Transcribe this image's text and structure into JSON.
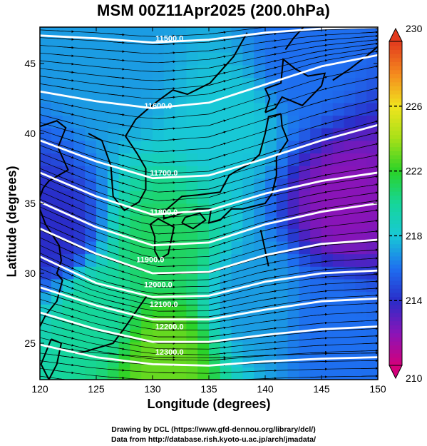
{
  "title": "MSM 00Z11Apr2025 (200.0hPa)",
  "credits": {
    "line1": "Drawing by DCL (https://www.gfd-dennou.org/library/dcl/)",
    "line2": "Data from http://database.rish.kyoto-u.ac.jp/arch/jmadata/"
  },
  "chart_data": {
    "type": "heatmap",
    "title": "MSM 00Z11Apr2025 (200.0hPa)",
    "xlabel": "Longitude (degrees)",
    "ylabel": "Latitude  (degrees)",
    "xlim": [
      120,
      150
    ],
    "ylim": [
      22.4,
      47.6
    ],
    "x_ticks": [
      120,
      125,
      130,
      135,
      140,
      145,
      150
    ],
    "y_ticks": [
      25,
      30,
      35,
      40,
      45
    ],
    "colorbar": {
      "min": 210,
      "max": 230,
      "ticks": [
        210,
        214,
        218,
        222,
        226,
        230
      ],
      "stops": [
        {
          "value": 210,
          "color": "#d4007a"
        },
        {
          "value": 212,
          "color": "#8a14b8"
        },
        {
          "value": 214,
          "color": "#2a2cc8"
        },
        {
          "value": 216,
          "color": "#1e6ff0"
        },
        {
          "value": 218,
          "color": "#18c8d6"
        },
        {
          "value": 220,
          "color": "#16d69a"
        },
        {
          "value": 222,
          "color": "#2ad228"
        },
        {
          "value": 224,
          "color": "#a6e018"
        },
        {
          "value": 226,
          "color": "#f0e41e"
        },
        {
          "value": 228,
          "color": "#f58a1e"
        },
        {
          "value": 230,
          "color": "#e23a1e"
        }
      ]
    },
    "temperature_regions": [
      {
        "lon": 127,
        "lat": 45,
        "value": 217
      },
      {
        "lon": 143,
        "lat": 45,
        "value": 216
      },
      {
        "lon": 137,
        "lat": 41,
        "value": 218
      },
      {
        "lon": 147,
        "lat": 35,
        "value": 212
      },
      {
        "lon": 121,
        "lat": 33,
        "value": 214
      },
      {
        "lon": 131,
        "lat": 32,
        "value": 221
      },
      {
        "lon": 125,
        "lat": 27,
        "value": 220
      },
      {
        "lon": 131,
        "lat": 24,
        "value": 223
      },
      {
        "lon": 139,
        "lat": 28,
        "value": 217
      },
      {
        "lon": 146,
        "lat": 26,
        "value": 216
      }
    ],
    "contours": [
      {
        "label": "11500.0",
        "points": [
          [
            120,
            47.0
          ],
          [
            125,
            46.8
          ],
          [
            130,
            46.5
          ],
          [
            135,
            46.7
          ],
          [
            140,
            47.2
          ],
          [
            145,
            47.5
          ],
          [
            150,
            47.6
          ]
        ]
      },
      {
        "label": "11600.0",
        "points": [
          [
            120,
            43.0
          ],
          [
            125,
            42.3
          ],
          [
            130,
            41.8
          ],
          [
            135,
            42.2
          ],
          [
            140,
            43.5
          ],
          [
            145,
            44.8
          ],
          [
            150,
            45.6
          ]
        ]
      },
      {
        "label": "11700.0",
        "points": [
          [
            120,
            39.5
          ],
          [
            125,
            38.0
          ],
          [
            130,
            36.8
          ],
          [
            135,
            37.0
          ],
          [
            140,
            38.2
          ],
          [
            145,
            39.5
          ],
          [
            150,
            40.6
          ]
        ]
      },
      {
        "label": "11800.0",
        "points": [
          [
            120,
            37.2
          ],
          [
            125,
            35.5
          ],
          [
            130,
            34.2
          ],
          [
            135,
            34.5
          ],
          [
            140,
            35.7
          ],
          [
            145,
            36.6
          ],
          [
            150,
            37.2
          ]
        ]
      },
      {
        "label": "11900.0",
        "points": [
          [
            120,
            35.1
          ],
          [
            125,
            33.3
          ],
          [
            130,
            32.0
          ],
          [
            135,
            32.2
          ],
          [
            140,
            33.5
          ],
          [
            145,
            34.4
          ],
          [
            150,
            35.0
          ]
        ]
      },
      {
        "label": "11900.0",
        "points": [
          [
            120,
            33.2
          ],
          [
            125,
            31.4
          ],
          [
            130,
            30.0
          ],
          [
            135,
            30.1
          ],
          [
            140,
            31.3
          ],
          [
            145,
            32.1
          ],
          [
            150,
            32.4
          ]
        ]
      },
      {
        "label": "12000.0",
        "points": [
          [
            120,
            31.2
          ],
          [
            125,
            29.3
          ],
          [
            130,
            28.3
          ],
          [
            135,
            28.4
          ],
          [
            140,
            29.4
          ],
          [
            145,
            30.0
          ],
          [
            150,
            30.2
          ]
        ]
      },
      {
        "label": "12100.0",
        "points": [
          [
            120,
            29.0
          ],
          [
            125,
            27.7
          ],
          [
            130,
            26.7
          ],
          [
            135,
            26.7
          ],
          [
            140,
            27.4
          ],
          [
            145,
            28.0
          ],
          [
            150,
            28.2
          ]
        ]
      },
      {
        "label": "12200.0",
        "points": [
          [
            120,
            27.2
          ],
          [
            125,
            26.0
          ],
          [
            130,
            25.1
          ],
          [
            135,
            25.1
          ],
          [
            140,
            25.6
          ],
          [
            145,
            26.0
          ],
          [
            150,
            26.2
          ]
        ]
      },
      {
        "label": "12300.0",
        "points": [
          [
            120,
            24.9
          ],
          [
            125,
            24.0
          ],
          [
            130,
            23.5
          ],
          [
            135,
            23.4
          ],
          [
            140,
            23.7
          ],
          [
            145,
            23.9
          ],
          [
            150,
            24.0
          ]
        ]
      }
    ],
    "contour_label_positions": [
      {
        "label": "11500.0",
        "lon": 131.5,
        "lat": 46.8
      },
      {
        "label": "11600.0",
        "lon": 130.5,
        "lat": 42.0
      },
      {
        "label": "11700.0",
        "lon": 131.0,
        "lat": 37.2
      },
      {
        "label": "11800.0",
        "lon": 131.0,
        "lat": 34.4
      },
      {
        "label": "11900.0",
        "lon": 129.8,
        "lat": 31.0
      },
      {
        "label": "12000.0",
        "lon": 130.5,
        "lat": 29.2
      },
      {
        "label": "12100.0",
        "lon": 131.0,
        "lat": 27.8
      },
      {
        "label": "12200.0",
        "lon": 131.5,
        "lat": 26.2
      },
      {
        "label": "12300.0",
        "lon": 131.5,
        "lat": 24.4
      }
    ],
    "coastlines": [
      {
        "name": "korea-peninsula",
        "points": [
          [
            124.3,
            40.0
          ],
          [
            125.5,
            39.5
          ],
          [
            126.3,
            37.7
          ],
          [
            126.5,
            35.5
          ],
          [
            127.5,
            34.5
          ],
          [
            128.8,
            35.1
          ],
          [
            129.4,
            36.0
          ],
          [
            129.4,
            37.5
          ],
          [
            128.6,
            38.6
          ],
          [
            127.6,
            39.8
          ],
          [
            128.5,
            41.0
          ],
          [
            129.8,
            41.9
          ],
          [
            130.6,
            42.4
          ]
        ]
      },
      {
        "name": "china-coast",
        "points": [
          [
            120.0,
            40.5
          ],
          [
            121.5,
            40.9
          ],
          [
            122.3,
            40.4
          ],
          [
            121.6,
            39.0
          ],
          [
            122.5,
            37.4
          ],
          [
            120.8,
            36.6
          ],
          [
            120.3,
            36.1
          ],
          [
            119.8,
            35.0
          ],
          [
            120.5,
            33.5
          ],
          [
            121.7,
            32.0
          ],
          [
            121.9,
            30.9
          ],
          [
            121.5,
            30.0
          ],
          [
            122.0,
            29.5
          ],
          [
            121.5,
            28.0
          ],
          [
            120.5,
            27.0
          ],
          [
            120.0,
            26.2
          ]
        ]
      },
      {
        "name": "primorye-sakhalin",
        "points": [
          [
            130.6,
            42.4
          ],
          [
            131.8,
            43.1
          ],
          [
            133.1,
            42.8
          ],
          [
            135.1,
            43.6
          ],
          [
            137.2,
            45.5
          ],
          [
            138.4,
            47.2
          ]
        ]
      },
      {
        "name": "sakhalin",
        "points": [
          [
            141.8,
            46.0
          ],
          [
            142.5,
            46.8
          ],
          [
            143.4,
            47.6
          ]
        ]
      },
      {
        "name": "hokkaido",
        "points": [
          [
            140.0,
            41.5
          ],
          [
            140.4,
            42.5
          ],
          [
            140.0,
            43.2
          ],
          [
            141.4,
            43.6
          ],
          [
            141.6,
            45.3
          ],
          [
            142.7,
            44.6
          ],
          [
            143.8,
            44.1
          ],
          [
            145.3,
            44.3
          ],
          [
            145.0,
            43.4
          ],
          [
            143.3,
            42.0
          ],
          [
            141.5,
            42.6
          ],
          [
            140.9,
            41.8
          ],
          [
            140.0,
            41.5
          ]
        ]
      },
      {
        "name": "honshu",
        "points": [
          [
            141.4,
            41.4
          ],
          [
            141.5,
            40.5
          ],
          [
            142.0,
            39.5
          ],
          [
            141.0,
            38.3
          ],
          [
            141.0,
            37.0
          ],
          [
            140.6,
            35.7
          ],
          [
            140.0,
            35.0
          ],
          [
            139.0,
            34.8
          ],
          [
            138.0,
            34.6
          ],
          [
            137.0,
            34.6
          ],
          [
            136.0,
            33.8
          ],
          [
            135.0,
            33.6
          ],
          [
            135.2,
            34.6
          ],
          [
            134.0,
            34.6
          ],
          [
            132.6,
            34.3
          ],
          [
            131.0,
            33.9
          ],
          [
            131.0,
            34.4
          ],
          [
            132.6,
            35.5
          ],
          [
            134.0,
            35.6
          ],
          [
            136.0,
            35.8
          ],
          [
            136.8,
            37.0
          ],
          [
            137.4,
            37.3
          ],
          [
            138.6,
            37.8
          ],
          [
            139.5,
            38.5
          ],
          [
            140.0,
            40.0
          ],
          [
            140.3,
            41.2
          ],
          [
            141.4,
            41.4
          ]
        ]
      },
      {
        "name": "kyushu",
        "points": [
          [
            129.8,
            33.5
          ],
          [
            130.5,
            33.9
          ],
          [
            131.9,
            33.3
          ],
          [
            131.4,
            31.4
          ],
          [
            130.6,
            31.0
          ],
          [
            130.2,
            31.6
          ],
          [
            130.2,
            32.6
          ],
          [
            129.8,
            33.5
          ]
        ]
      },
      {
        "name": "shikoku",
        "points": [
          [
            132.6,
            33.6
          ],
          [
            133.6,
            33.2
          ],
          [
            134.7,
            33.8
          ],
          [
            134.2,
            34.3
          ],
          [
            132.9,
            34.0
          ],
          [
            132.6,
            33.6
          ]
        ]
      },
      {
        "name": "taiwan",
        "points": [
          [
            121.0,
            25.3
          ],
          [
            121.9,
            25.0
          ],
          [
            121.5,
            23.5
          ],
          [
            120.8,
            22.4
          ],
          [
            120.1,
            23.5
          ],
          [
            121.0,
            25.3
          ]
        ]
      },
      {
        "name": "ryukyu",
        "points": [
          [
            129.5,
            28.4
          ],
          [
            128.3,
            27.0
          ],
          [
            127.7,
            26.3
          ],
          [
            126.5,
            25.0
          ],
          [
            124.0,
            24.4
          ],
          [
            123.0,
            24.3
          ]
        ]
      },
      {
        "name": "izu",
        "points": [
          [
            139.6,
            33.1
          ],
          [
            139.8,
            32.4
          ],
          [
            140.3,
            30.5
          ]
        ]
      },
      {
        "name": "kuril",
        "points": [
          [
            146.0,
            43.8
          ],
          [
            147.5,
            44.6
          ],
          [
            148.8,
            45.4
          ],
          [
            150.0,
            46.2
          ]
        ]
      }
    ],
    "grid": false
  }
}
